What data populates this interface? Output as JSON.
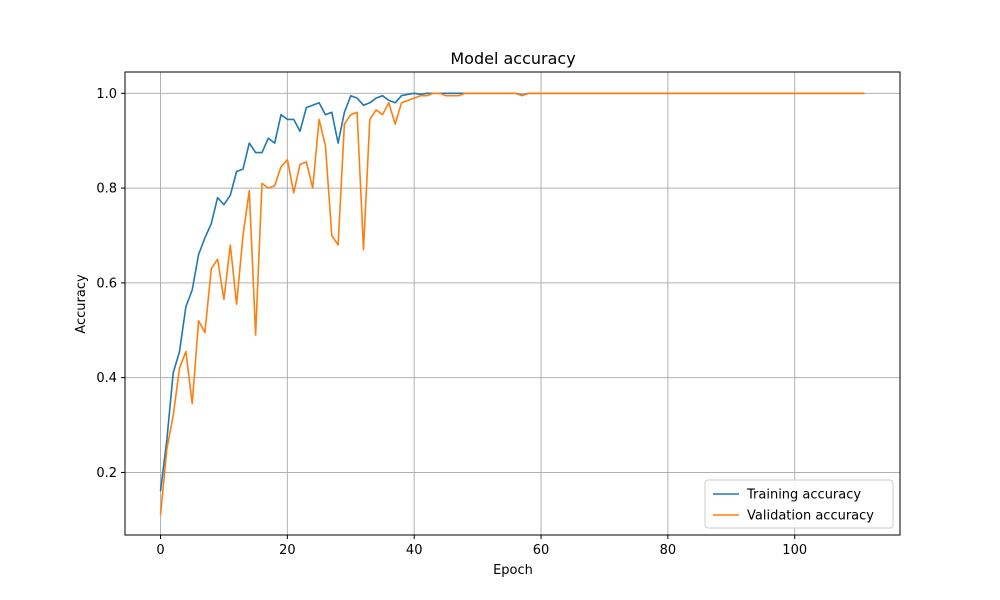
{
  "chart_data": {
    "type": "line",
    "title": "Model accuracy",
    "xlabel": "Epoch",
    "ylabel": "Accuracy",
    "xlim": [
      -5.6,
      116.6
    ],
    "ylim": [
      0.068,
      1.045
    ],
    "xticks": [
      0,
      20,
      40,
      60,
      80,
      100
    ],
    "xtick_labels": [
      "0",
      "20",
      "40",
      "60",
      "80",
      "100"
    ],
    "yticks": [
      0.2,
      0.4,
      0.6,
      0.8,
      1.0
    ],
    "ytick_labels": [
      "0.2",
      "0.4",
      "0.6",
      "0.8",
      "1.0"
    ],
    "grid": true,
    "legend_position": "lower-right",
    "series": [
      {
        "name": "Training accuracy",
        "color": "#1f77b4",
        "x": [
          0,
          1,
          2,
          3,
          4,
          5,
          6,
          7,
          8,
          9,
          10,
          11,
          12,
          13,
          14,
          15,
          16,
          17,
          18,
          19,
          20,
          21,
          22,
          23,
          24,
          25,
          26,
          27,
          28,
          29,
          30,
          31,
          32,
          33,
          34,
          35,
          36,
          37,
          38,
          39,
          40,
          41,
          42,
          43,
          44,
          45,
          46,
          47,
          48,
          49,
          50,
          51,
          52,
          53,
          54,
          55,
          56,
          57,
          58,
          59,
          60,
          111
        ],
        "y": [
          0.16,
          0.27,
          0.41,
          0.455,
          0.55,
          0.585,
          0.66,
          0.695,
          0.725,
          0.78,
          0.765,
          0.785,
          0.835,
          0.84,
          0.895,
          0.875,
          0.875,
          0.905,
          0.895,
          0.955,
          0.945,
          0.945,
          0.92,
          0.97,
          0.975,
          0.98,
          0.955,
          0.96,
          0.895,
          0.96,
          0.995,
          0.99,
          0.975,
          0.98,
          0.99,
          0.995,
          0.985,
          0.98,
          0.995,
          0.998,
          1.0,
          0.998,
          1.0,
          1.0,
          1.0,
          1.0,
          1.0,
          1.0,
          1.0,
          1.0,
          1.0,
          1.0,
          1.0,
          1.0,
          1.0,
          1.0,
          1.0,
          0.996,
          1.0,
          1.0,
          1.0,
          1.0
        ]
      },
      {
        "name": "Validation accuracy",
        "color": "#ff7f0e",
        "x": [
          0,
          1,
          2,
          3,
          4,
          5,
          6,
          7,
          8,
          9,
          10,
          11,
          12,
          13,
          14,
          15,
          16,
          17,
          18,
          19,
          20,
          21,
          22,
          23,
          24,
          25,
          26,
          27,
          28,
          29,
          30,
          31,
          32,
          33,
          34,
          35,
          36,
          37,
          38,
          39,
          40,
          41,
          42,
          43,
          44,
          45,
          46,
          47,
          48,
          49,
          50,
          51,
          52,
          53,
          54,
          55,
          56,
          57,
          58,
          59,
          60,
          111
        ],
        "y": [
          0.11,
          0.25,
          0.32,
          0.42,
          0.455,
          0.345,
          0.52,
          0.495,
          0.63,
          0.65,
          0.565,
          0.68,
          0.555,
          0.7,
          0.795,
          0.49,
          0.81,
          0.8,
          0.805,
          0.845,
          0.86,
          0.79,
          0.85,
          0.855,
          0.8,
          0.945,
          0.89,
          0.7,
          0.68,
          0.935,
          0.955,
          0.96,
          0.67,
          0.945,
          0.965,
          0.955,
          0.98,
          0.935,
          0.98,
          0.985,
          0.99,
          0.995,
          0.995,
          1.0,
          1.0,
          0.995,
          0.995,
          0.995,
          1.0,
          1.0,
          1.0,
          1.0,
          1.0,
          1.0,
          1.0,
          1.0,
          1.0,
          0.995,
          1.0,
          1.0,
          1.0,
          1.0
        ]
      }
    ]
  }
}
